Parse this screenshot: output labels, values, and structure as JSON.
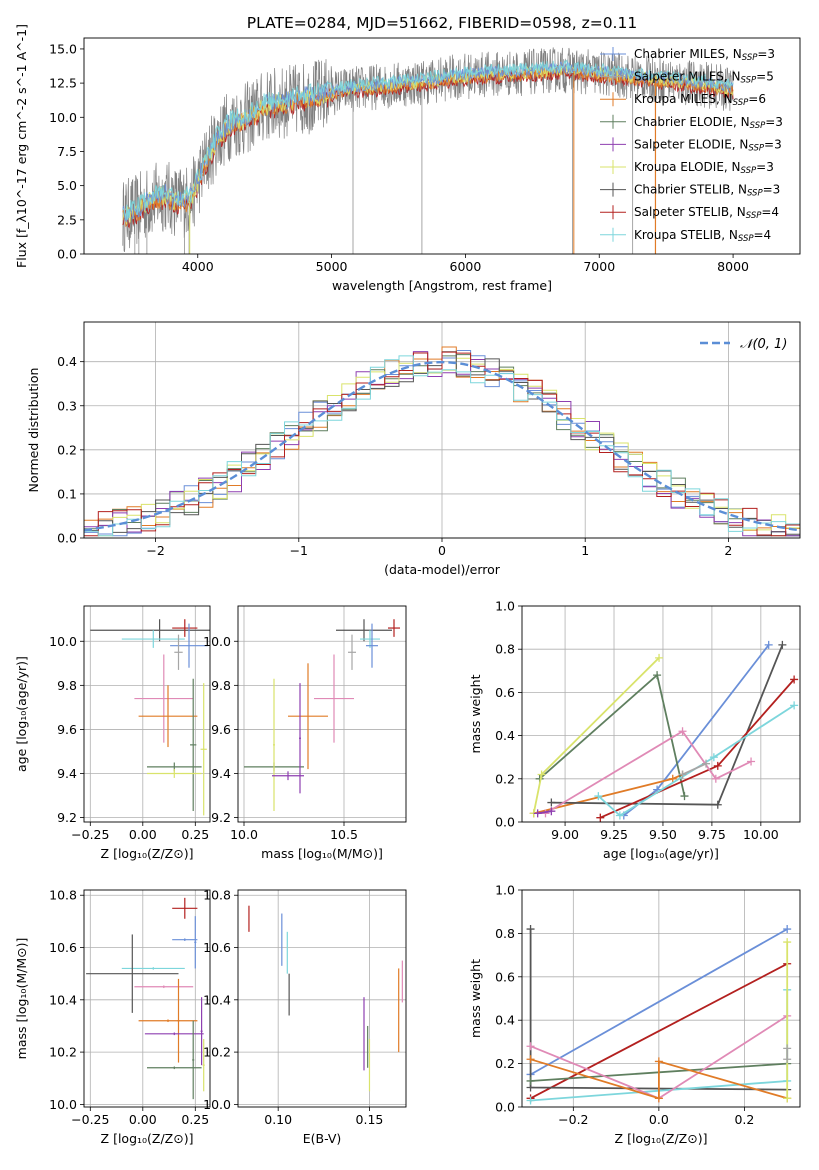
{
  "figure_title": "PLATE=0284, MJD=51662, FIBERID=0598, z=0.11",
  "colors": {
    "Chabrier MILES": "#6a8fd8",
    "Salpeter MILES": "#a6a6a6",
    "Kroupa MILES": "#e07b27",
    "Chabrier ELODIE": "#5f7f5f",
    "Salpeter ELODIE": "#8e3fb0",
    "Kroupa ELODIE": "#d9e36b",
    "Chabrier STELIB": "#555555",
    "Salpeter STELIB": "#b3201f",
    "Kroupa STELIB": "#7dd6dc",
    "pink": "#e08ab6",
    "gaussian": "#5b8ed6"
  },
  "chart_data": [
    {
      "id": "spectrum",
      "type": "line",
      "xlabel": "wavelength [Angstrom, rest frame]",
      "ylabel": "Flux [f_λ10^-17 erg cm^-2 s^-1 A^-1]",
      "xlim": [
        3150,
        8500
      ],
      "ylim": [
        0,
        15.8
      ],
      "xticks": [
        "4000",
        "5000",
        "6000",
        "7000",
        "8000"
      ],
      "yticks": [
        "0.0",
        "2.5",
        "5.0",
        "7.5",
        "10.0",
        "12.5",
        "15.0"
      ],
      "continuum": {
        "x": [
          3450,
          3550,
          3650,
          3750,
          3850,
          3950,
          4050,
          4150,
          4250,
          4350,
          4500,
          4700,
          4900,
          5100,
          5300,
          5500,
          5700,
          5900,
          6100,
          6300,
          6500,
          6700,
          6900,
          7100,
          7300,
          7500,
          7700,
          7900,
          8000
        ],
        "y": [
          2.8,
          3.2,
          3.9,
          4.3,
          3.8,
          4.0,
          6.5,
          8.5,
          9.6,
          9.8,
          10.8,
          11.2,
          11.6,
          12.0,
          12.2,
          12.4,
          12.6,
          12.9,
          13.1,
          13.2,
          13.3,
          13.5,
          13.3,
          13.1,
          12.9,
          12.7,
          12.5,
          12.2,
          12.0
        ]
      },
      "legend": [
        {
          "label": "Chabrier MILES, N",
          "sub": "SSP",
          "count": "=3",
          "color": "Chabrier MILES"
        },
        {
          "label": "Salpeter MILES, N",
          "sub": "SSP",
          "count": "=5",
          "color": "Salpeter MILES"
        },
        {
          "label": "Kroupa MILES, N",
          "sub": "SSP",
          "count": "=6",
          "color": "Kroupa MILES"
        },
        {
          "label": "Chabrier ELODIE, N",
          "sub": "SSP",
          "count": "=3",
          "color": "Chabrier ELODIE"
        },
        {
          "label": "Salpeter ELODIE, N",
          "sub": "SSP",
          "count": "=3",
          "color": "Salpeter ELODIE"
        },
        {
          "label": "Kroupa ELODIE, N",
          "sub": "SSP",
          "count": "=3",
          "color": "Kroupa ELODIE"
        },
        {
          "label": "Chabrier STELIB, N",
          "sub": "SSP",
          "count": "=3",
          "color": "Chabrier STELIB"
        },
        {
          "label": "Salpeter STELIB, N",
          "sub": "SSP",
          "count": "=4",
          "color": "Salpeter STELIB"
        },
        {
          "label": "Kroupa STELIB, N",
          "sub": "SSP",
          "count": "=4",
          "color": "Kroupa STELIB"
        }
      ],
      "legend_position": "upper-right"
    },
    {
      "id": "residuals",
      "type": "bar",
      "xlabel": "(data-model)/error",
      "ylabel": "Normed distribution",
      "xlim": [
        -2.5,
        2.5
      ],
      "ylim": [
        0,
        0.49
      ],
      "xticks": [
        "−2",
        "−1",
        "0",
        "1",
        "2"
      ],
      "yticks": [
        "0.0",
        "0.1",
        "0.2",
        "0.3",
        "0.4"
      ],
      "bin_edges_start": -2.5,
      "bin_width": 0.1,
      "gaussian_label": "𝒩(0, 1)",
      "legend_position": "upper-right",
      "grid": true
    },
    {
      "id": "z-age",
      "type": "scatter",
      "xlabel": "Z [log₁₀(Z/Z⊙)]",
      "ylabel": "age  [log₁₀(age/yr)]",
      "xlim": [
        -0.28,
        0.32
      ],
      "ylim": [
        9.18,
        10.16
      ],
      "xticks": [
        "−0.25",
        "0.00",
        "0.25"
      ],
      "yticks": [
        "9.2",
        "9.4",
        "9.6",
        "9.8",
        "10.0"
      ],
      "points": [
        {
          "x": 0.08,
          "y": 10.05,
          "xe": 0.33,
          "ye": 0.05,
          "c": "Chabrier STELIB"
        },
        {
          "x": 0.2,
          "y": 10.06,
          "xe": 0.06,
          "ye": 0.04,
          "c": "Salpeter STELIB"
        },
        {
          "x": 0.05,
          "y": 10.01,
          "xe": 0.15,
          "ye": 0.04,
          "c": "Kroupa STELIB"
        },
        {
          "x": 0.22,
          "y": 9.98,
          "xe": 0.09,
          "ye": 0.1,
          "c": "Chabrier MILES"
        },
        {
          "x": 0.17,
          "y": 9.95,
          "xe": 0.02,
          "ye": 0.08,
          "c": "Salpeter MILES"
        },
        {
          "x": 0.1,
          "y": 9.74,
          "xe": 0.14,
          "ye": 0.2,
          "c": "pink"
        },
        {
          "x": 0.12,
          "y": 9.66,
          "xe": 0.14,
          "ye": 0.14,
          "c": "Kroupa MILES"
        },
        {
          "x": 0.15,
          "y": 9.43,
          "xe": 0.13,
          "ye": 0.02,
          "c": "Chabrier ELODIE"
        },
        {
          "x": 0.24,
          "y": 9.53,
          "xe": 0.015,
          "ye": 0.3,
          "c": "Chabrier ELODIE"
        },
        {
          "x": 0.15,
          "y": 9.4,
          "xe": 0.13,
          "ye": 0.02,
          "c": "Kroupa ELODIE"
        },
        {
          "x": 0.29,
          "y": 9.51,
          "xe": 0.015,
          "ye": 0.3,
          "c": "Kroupa ELODIE"
        }
      ]
    },
    {
      "id": "mass-age",
      "type": "scatter",
      "xlabel": "mass [log₁₀(M/M⊙)]",
      "ylabel": "",
      "xlim": [
        9.97,
        10.81
      ],
      "ylim": [
        9.18,
        10.16
      ],
      "xticks": [
        "10.0",
        "10.5"
      ],
      "yticks": [
        "9.2",
        "9.4",
        "9.6",
        "9.8",
        "10.0"
      ],
      "points": [
        {
          "x": 10.6,
          "y": 10.05,
          "xe": 0.14,
          "ye": 0.05,
          "c": "Chabrier STELIB"
        },
        {
          "x": 10.75,
          "y": 10.06,
          "xe": 0.03,
          "ye": 0.04,
          "c": "Salpeter STELIB"
        },
        {
          "x": 10.63,
          "y": 10.01,
          "xe": 0.05,
          "ye": 0.04,
          "c": "Kroupa STELIB"
        },
        {
          "x": 10.64,
          "y": 9.98,
          "xe": 0.03,
          "ye": 0.1,
          "c": "Chabrier MILES"
        },
        {
          "x": 10.54,
          "y": 9.95,
          "xe": 0.02,
          "ye": 0.08,
          "c": "Salpeter MILES"
        },
        {
          "x": 10.45,
          "y": 9.74,
          "xe": 0.1,
          "ye": 0.2,
          "c": "pink"
        },
        {
          "x": 10.32,
          "y": 9.66,
          "xe": 0.1,
          "ye": 0.24,
          "c": "Kroupa MILES"
        },
        {
          "x": 10.15,
          "y": 9.43,
          "xe": 0.15,
          "ye": 0.02,
          "c": "Chabrier ELODIE"
        },
        {
          "x": 10.15,
          "y": 9.53,
          "xe": 0.005,
          "ye": 0.3,
          "c": "Kroupa ELODIE"
        },
        {
          "x": 10.22,
          "y": 9.39,
          "xe": 0.08,
          "ye": 0.02,
          "c": "Salpeter ELODIE"
        },
        {
          "x": 10.28,
          "y": 9.56,
          "xe": 0.005,
          "ye": 0.25,
          "c": "Salpeter ELODIE"
        }
      ]
    },
    {
      "id": "age-weight",
      "type": "line",
      "xlabel": "age  [log₁₀(age/yr)]",
      "ylabel": "mass weight",
      "xlim": [
        8.78,
        10.2
      ],
      "ylim": [
        0,
        1.0
      ],
      "xticks": [
        "9.00",
        "9.25",
        "9.50",
        "9.75",
        "10.00"
      ],
      "yticks": [
        "0.0",
        "0.2",
        "0.4",
        "0.6",
        "0.8",
        "1.0"
      ],
      "grid": true,
      "series": [
        {
          "c": "Chabrier MILES",
          "x": [
            9.3,
            9.47,
            10.04
          ],
          "y": [
            0.03,
            0.15,
            0.82
          ]
        },
        {
          "c": "Kroupa MILES",
          "x": [
            8.84,
            9.55,
            9.6
          ],
          "y": [
            0.04,
            0.2,
            0.22
          ]
        },
        {
          "c": "Chabrier ELODIE",
          "x": [
            8.87,
            9.47,
            9.61
          ],
          "y": [
            0.2,
            0.68,
            0.12
          ]
        },
        {
          "c": "Kroupa ELODIE",
          "x": [
            8.84,
            8.88,
            9.48
          ],
          "y": [
            0.04,
            0.22,
            0.76
          ]
        },
        {
          "c": "Chabrier STELIB",
          "x": [
            8.93,
            9.78,
            10.11
          ],
          "y": [
            0.09,
            0.08,
            0.82
          ]
        },
        {
          "c": "Salpeter STELIB",
          "x": [
            9.18,
            9.78,
            10.17
          ],
          "y": [
            0.02,
            0.26,
            0.66
          ]
        },
        {
          "c": "Kroupa STELIB",
          "x": [
            9.17,
            9.28,
            9.76,
            10.17
          ],
          "y": [
            0.12,
            0.03,
            0.3,
            0.54
          ]
        },
        {
          "c": "pink",
          "x": [
            8.9,
            9.6,
            9.77,
            9.95
          ],
          "y": [
            0.04,
            0.42,
            0.2,
            0.28
          ]
        },
        {
          "c": "Salpeter ELODIE",
          "x": [
            8.86,
            8.93
          ],
          "y": [
            0.04,
            0.05
          ]
        },
        {
          "c": "Salpeter MILES",
          "x": [
            9.6,
            9.72
          ],
          "y": [
            0.22,
            0.27
          ]
        }
      ]
    },
    {
      "id": "z-mass",
      "type": "scatter",
      "xlabel": "Z [log₁₀(Z/Z⊙)]",
      "ylabel": "mass [log₁₀(M/M⊙)]",
      "xlim": [
        -0.28,
        0.32
      ],
      "ylim": [
        9.99,
        10.82
      ],
      "xticks": [
        "−0.25",
        "0.00",
        "0.25"
      ],
      "yticks": [
        "10.0",
        "10.2",
        "10.4",
        "10.6",
        "10.8"
      ],
      "points": [
        {
          "x": 0.2,
          "y": 10.75,
          "xe": 0.06,
          "ye": 0.04,
          "c": "Salpeter STELIB"
        },
        {
          "x": 0.25,
          "y": 10.62,
          "xe": 0.005,
          "ye": 0.1,
          "c": "Chabrier MILES"
        },
        {
          "x": 0.2,
          "y": 10.63,
          "xe": 0.06,
          "ye": 0.005,
          "c": "Chabrier MILES"
        },
        {
          "x": 0.05,
          "y": 10.52,
          "xe": 0.15,
          "ye": 0.005,
          "c": "Kroupa STELIB"
        },
        {
          "x": -0.05,
          "y": 10.5,
          "xe": 0.22,
          "ye": 0.15,
          "c": "Chabrier STELIB"
        },
        {
          "x": 0.1,
          "y": 10.45,
          "xe": 0.14,
          "ye": 0.005,
          "c": "pink"
        },
        {
          "x": 0.12,
          "y": 10.32,
          "xe": 0.14,
          "ye": 0.005,
          "c": "Kroupa MILES"
        },
        {
          "x": 0.17,
          "y": 10.32,
          "xe": 0.005,
          "ye": 0.16,
          "c": "Kroupa MILES"
        },
        {
          "x": 0.15,
          "y": 10.27,
          "xe": 0.14,
          "ye": 0.005,
          "c": "Salpeter ELODIE"
        },
        {
          "x": 0.28,
          "y": 10.28,
          "xe": 0.005,
          "ye": 0.13,
          "c": "Salpeter ELODIE"
        },
        {
          "x": 0.15,
          "y": 10.14,
          "xe": 0.13,
          "ye": 0.005,
          "c": "Chabrier ELODIE"
        },
        {
          "x": 0.24,
          "y": 10.17,
          "xe": 0.005,
          "ye": 0.15,
          "c": "Chabrier ELODIE"
        },
        {
          "x": 0.29,
          "y": 10.15,
          "xe": 0.005,
          "ye": 0.1,
          "c": "Kroupa ELODIE"
        }
      ]
    },
    {
      "id": "ebv-mass",
      "type": "scatter",
      "xlabel": "E(B-V)",
      "ylabel": "",
      "xlim": [
        0.078,
        0.17
      ],
      "ylim": [
        9.99,
        10.82
      ],
      "xticks": [
        "0.10",
        "0.15"
      ],
      "yticks": [
        "10.0",
        "10.2",
        "10.4",
        "10.6",
        "10.8"
      ],
      "points": [
        {
          "x": 0.084,
          "y": 10.71,
          "xe": 0.0,
          "ye": 0.05,
          "c": "Salpeter STELIB"
        },
        {
          "x": 0.102,
          "y": 10.63,
          "xe": 0.0,
          "ye": 0.1,
          "c": "Chabrier MILES"
        },
        {
          "x": 0.105,
          "y": 10.58,
          "xe": 0.0,
          "ye": 0.08,
          "c": "Kroupa STELIB"
        },
        {
          "x": 0.106,
          "y": 10.42,
          "xe": 0.0,
          "ye": 0.08,
          "c": "Chabrier STELIB"
        },
        {
          "x": 0.147,
          "y": 10.27,
          "xe": 0.0,
          "ye": 0.14,
          "c": "Salpeter ELODIE"
        },
        {
          "x": 0.149,
          "y": 10.22,
          "xe": 0.0,
          "ye": 0.08,
          "c": "Chabrier ELODIE"
        },
        {
          "x": 0.15,
          "y": 10.15,
          "xe": 0.0,
          "ye": 0.1,
          "c": "Kroupa ELODIE"
        },
        {
          "x": 0.166,
          "y": 10.36,
          "xe": 0.0,
          "ye": 0.16,
          "c": "Kroupa MILES"
        },
        {
          "x": 0.168,
          "y": 10.47,
          "xe": 0.0,
          "ye": 0.08,
          "c": "pink"
        }
      ]
    },
    {
      "id": "z-weight",
      "type": "line",
      "xlabel": "Z [log₁₀(Z/Z⊙)]",
      "ylabel": "mass weight",
      "xlim": [
        -0.32,
        0.33
      ],
      "ylim": [
        0,
        1.0
      ],
      "xticks": [
        "−0.2",
        "0.0",
        "0.2"
      ],
      "yticks": [
        "0.0",
        "0.2",
        "0.4",
        "0.6",
        "0.8",
        "1.0"
      ],
      "grid": true,
      "series": [
        {
          "c": "Chabrier MILES",
          "x": [
            -0.3,
            0.3
          ],
          "y": [
            0.15,
            0.82
          ]
        },
        {
          "c": "Salpeter STELIB",
          "x": [
            -0.3,
            0.3
          ],
          "y": [
            0.04,
            0.66
          ]
        },
        {
          "c": "Chabrier STELIB",
          "x": [
            -0.3,
            -0.3,
            0.3
          ],
          "y": [
            0.82,
            0.09,
            0.08
          ]
        },
        {
          "c": "Chabrier ELODIE",
          "x": [
            -0.3,
            0.3
          ],
          "y": [
            0.12,
            0.2
          ]
        },
        {
          "c": "Kroupa STELIB",
          "x": [
            -0.3,
            0.3,
            0.3
          ],
          "y": [
            0.03,
            0.12,
            0.54
          ]
        },
        {
          "c": "pink",
          "x": [
            -0.3,
            0.0,
            0.3
          ],
          "y": [
            0.28,
            0.04,
            0.42
          ]
        },
        {
          "c": "Kroupa MILES",
          "x": [
            -0.3,
            0.0,
            0.0,
            0.3
          ],
          "y": [
            0.22,
            0.04,
            0.21,
            0.04
          ]
        },
        {
          "c": "Kroupa ELODIE",
          "x": [
            0.3,
            0.3
          ],
          "y": [
            0.04,
            0.76
          ]
        },
        {
          "c": "Salpeter MILES",
          "x": [
            0.3,
            0.3
          ],
          "y": [
            0.22,
            0.27
          ]
        }
      ]
    }
  ]
}
